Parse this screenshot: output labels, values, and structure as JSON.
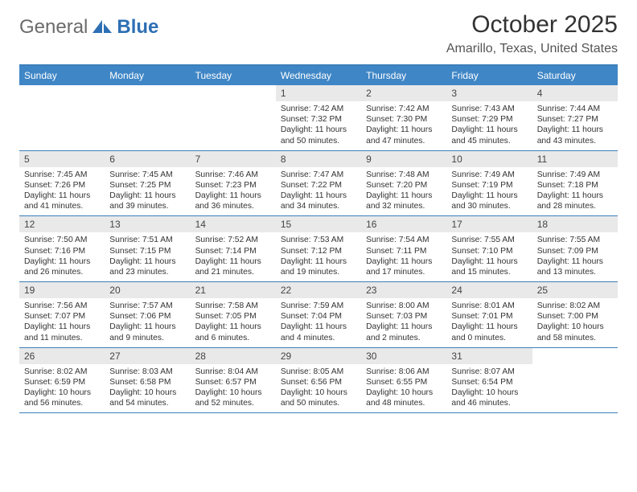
{
  "logo": {
    "general": "General",
    "blue": "Blue"
  },
  "title": "October 2025",
  "location": "Amarillo, Texas, United States",
  "colors": {
    "header_bg": "#3f86c6",
    "header_text": "#ffffff",
    "rule": "#3d7fba",
    "daynum_bg": "#e9e9e9",
    "text": "#333333",
    "logo_gray": "#6b6b6b",
    "logo_blue": "#2d6fb4"
  },
  "days_of_week": [
    "Sunday",
    "Monday",
    "Tuesday",
    "Wednesday",
    "Thursday",
    "Friday",
    "Saturday"
  ],
  "weeks": [
    [
      null,
      null,
      null,
      {
        "n": "1",
        "sunrise": "7:42 AM",
        "sunset": "7:32 PM",
        "dl_h": "11",
        "dl_m": "50"
      },
      {
        "n": "2",
        "sunrise": "7:42 AM",
        "sunset": "7:30 PM",
        "dl_h": "11",
        "dl_m": "47"
      },
      {
        "n": "3",
        "sunrise": "7:43 AM",
        "sunset": "7:29 PM",
        "dl_h": "11",
        "dl_m": "45"
      },
      {
        "n": "4",
        "sunrise": "7:44 AM",
        "sunset": "7:27 PM",
        "dl_h": "11",
        "dl_m": "43"
      }
    ],
    [
      {
        "n": "5",
        "sunrise": "7:45 AM",
        "sunset": "7:26 PM",
        "dl_h": "11",
        "dl_m": "41"
      },
      {
        "n": "6",
        "sunrise": "7:45 AM",
        "sunset": "7:25 PM",
        "dl_h": "11",
        "dl_m": "39"
      },
      {
        "n": "7",
        "sunrise": "7:46 AM",
        "sunset": "7:23 PM",
        "dl_h": "11",
        "dl_m": "36"
      },
      {
        "n": "8",
        "sunrise": "7:47 AM",
        "sunset": "7:22 PM",
        "dl_h": "11",
        "dl_m": "34"
      },
      {
        "n": "9",
        "sunrise": "7:48 AM",
        "sunset": "7:20 PM",
        "dl_h": "11",
        "dl_m": "32"
      },
      {
        "n": "10",
        "sunrise": "7:49 AM",
        "sunset": "7:19 PM",
        "dl_h": "11",
        "dl_m": "30"
      },
      {
        "n": "11",
        "sunrise": "7:49 AM",
        "sunset": "7:18 PM",
        "dl_h": "11",
        "dl_m": "28"
      }
    ],
    [
      {
        "n": "12",
        "sunrise": "7:50 AM",
        "sunset": "7:16 PM",
        "dl_h": "11",
        "dl_m": "26"
      },
      {
        "n": "13",
        "sunrise": "7:51 AM",
        "sunset": "7:15 PM",
        "dl_h": "11",
        "dl_m": "23"
      },
      {
        "n": "14",
        "sunrise": "7:52 AM",
        "sunset": "7:14 PM",
        "dl_h": "11",
        "dl_m": "21"
      },
      {
        "n": "15",
        "sunrise": "7:53 AM",
        "sunset": "7:12 PM",
        "dl_h": "11",
        "dl_m": "19"
      },
      {
        "n": "16",
        "sunrise": "7:54 AM",
        "sunset": "7:11 PM",
        "dl_h": "11",
        "dl_m": "17"
      },
      {
        "n": "17",
        "sunrise": "7:55 AM",
        "sunset": "7:10 PM",
        "dl_h": "11",
        "dl_m": "15"
      },
      {
        "n": "18",
        "sunrise": "7:55 AM",
        "sunset": "7:09 PM",
        "dl_h": "11",
        "dl_m": "13"
      }
    ],
    [
      {
        "n": "19",
        "sunrise": "7:56 AM",
        "sunset": "7:07 PM",
        "dl_h": "11",
        "dl_m": "11"
      },
      {
        "n": "20",
        "sunrise": "7:57 AM",
        "sunset": "7:06 PM",
        "dl_h": "11",
        "dl_m": "9"
      },
      {
        "n": "21",
        "sunrise": "7:58 AM",
        "sunset": "7:05 PM",
        "dl_h": "11",
        "dl_m": "6"
      },
      {
        "n": "22",
        "sunrise": "7:59 AM",
        "sunset": "7:04 PM",
        "dl_h": "11",
        "dl_m": "4"
      },
      {
        "n": "23",
        "sunrise": "8:00 AM",
        "sunset": "7:03 PM",
        "dl_h": "11",
        "dl_m": "2"
      },
      {
        "n": "24",
        "sunrise": "8:01 AM",
        "sunset": "7:01 PM",
        "dl_h": "11",
        "dl_m": "0"
      },
      {
        "n": "25",
        "sunrise": "8:02 AM",
        "sunset": "7:00 PM",
        "dl_h": "10",
        "dl_m": "58"
      }
    ],
    [
      {
        "n": "26",
        "sunrise": "8:02 AM",
        "sunset": "6:59 PM",
        "dl_h": "10",
        "dl_m": "56"
      },
      {
        "n": "27",
        "sunrise": "8:03 AM",
        "sunset": "6:58 PM",
        "dl_h": "10",
        "dl_m": "54"
      },
      {
        "n": "28",
        "sunrise": "8:04 AM",
        "sunset": "6:57 PM",
        "dl_h": "10",
        "dl_m": "52"
      },
      {
        "n": "29",
        "sunrise": "8:05 AM",
        "sunset": "6:56 PM",
        "dl_h": "10",
        "dl_m": "50"
      },
      {
        "n": "30",
        "sunrise": "8:06 AM",
        "sunset": "6:55 PM",
        "dl_h": "10",
        "dl_m": "48"
      },
      {
        "n": "31",
        "sunrise": "8:07 AM",
        "sunset": "6:54 PM",
        "dl_h": "10",
        "dl_m": "46"
      },
      null
    ]
  ],
  "labels": {
    "sunrise": "Sunrise:",
    "sunset": "Sunset:",
    "daylight": "Daylight:",
    "hours": "hours",
    "and": "and",
    "minutes": "minutes."
  }
}
